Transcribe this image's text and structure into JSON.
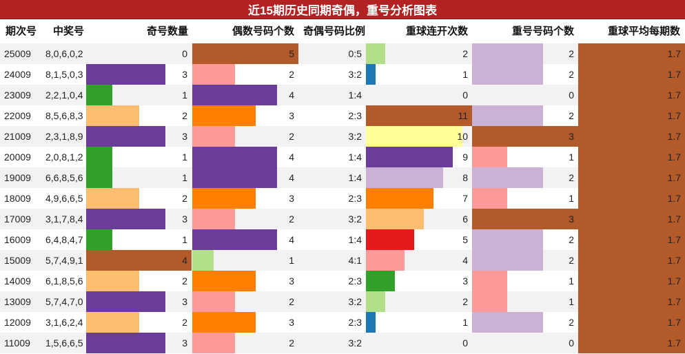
{
  "title": "近15期历史同期奇偶，重号分析图表",
  "chart_data": {
    "type": "table",
    "title": "近15期历史同期奇偶，重号分析图表",
    "columns": [
      "期次号",
      "中奖号",
      "奇号数量",
      "偶数号码个数",
      "奇偶号码比例",
      "重球连开次数",
      "重号号码个数",
      "重球平均每期数"
    ],
    "rows": [
      {
        "period": "25009",
        "numbers": "8,0,6,0,2",
        "odd": 0,
        "even": 5,
        "ratio": "0:5",
        "streak": 2,
        "repeat": 2,
        "avg": 1.7
      },
      {
        "period": "24009",
        "numbers": "8,1,5,0,3",
        "odd": 3,
        "even": 2,
        "ratio": "3:2",
        "streak": 1,
        "repeat": 2,
        "avg": 1.7
      },
      {
        "period": "23009",
        "numbers": "2,2,1,0,4",
        "odd": 1,
        "even": 4,
        "ratio": "1:4",
        "streak": 0,
        "repeat": 0,
        "avg": 1.7
      },
      {
        "period": "22009",
        "numbers": "8,5,6,8,3",
        "odd": 2,
        "even": 3,
        "ratio": "2:3",
        "streak": 11,
        "repeat": 2,
        "avg": 1.7
      },
      {
        "period": "21009",
        "numbers": "2,3,1,8,9",
        "odd": 3,
        "even": 2,
        "ratio": "3:2",
        "streak": 10,
        "repeat": 3,
        "avg": 1.7
      },
      {
        "period": "20009",
        "numbers": "2,0,8,1,2",
        "odd": 1,
        "even": 4,
        "ratio": "1:4",
        "streak": 9,
        "repeat": 1,
        "avg": 1.7
      },
      {
        "period": "19009",
        "numbers": "6,6,8,5,6",
        "odd": 1,
        "even": 4,
        "ratio": "1:4",
        "streak": 8,
        "repeat": 2,
        "avg": 1.7
      },
      {
        "period": "18009",
        "numbers": "4,9,6,6,5",
        "odd": 2,
        "even": 3,
        "ratio": "2:3",
        "streak": 7,
        "repeat": 1,
        "avg": 1.7
      },
      {
        "period": "17009",
        "numbers": "3,1,7,8,4",
        "odd": 3,
        "even": 2,
        "ratio": "3:2",
        "streak": 6,
        "repeat": 3,
        "avg": 1.7
      },
      {
        "period": "16009",
        "numbers": "6,4,8,4,7",
        "odd": 1,
        "even": 4,
        "ratio": "1:4",
        "streak": 5,
        "repeat": 2,
        "avg": 1.7
      },
      {
        "period": "15009",
        "numbers": "5,7,4,9,1",
        "odd": 4,
        "even": 1,
        "ratio": "4:1",
        "streak": 4,
        "repeat": 2,
        "avg": 1.7
      },
      {
        "period": "14009",
        "numbers": "6,1,8,5,6",
        "odd": 2,
        "even": 3,
        "ratio": "2:3",
        "streak": 3,
        "repeat": 1,
        "avg": 1.7
      },
      {
        "period": "13009",
        "numbers": "5,7,4,7,0",
        "odd": 3,
        "even": 2,
        "ratio": "3:2",
        "streak": 2,
        "repeat": 1,
        "avg": 1.7
      },
      {
        "period": "12009",
        "numbers": "3,1,6,2,4",
        "odd": 2,
        "even": 3,
        "ratio": "2:3",
        "streak": 1,
        "repeat": 2,
        "avg": 1.7
      },
      {
        "period": "11009",
        "numbers": "1,5,6,6,5",
        "odd": 3,
        "even": 2,
        "ratio": "3:2",
        "streak": 0,
        "repeat": 0,
        "avg": 1.7
      }
    ],
    "scale": {
      "odd_max": 4,
      "even_max": 5,
      "streak_max": 11,
      "repeat_max": 3,
      "avg_max": 1.7
    },
    "colors": {
      "count_5": "#b35a2a",
      "count_4": "#6b3d9a",
      "count_3": "#ff7f00",
      "count_2": "#fb9a99",
      "count_1": "#33a02c",
      "count_odd_2": "#fdbf6f",
      "count_odd_3": "#6b3d9a",
      "count_odd_4": "#b35a2a",
      "count_even_1": "#b2df8a",
      "count_even_2": "#fb9a99",
      "count_even_3": "#ff7f00",
      "count_even_4": "#6b3d9a",
      "count_even_5": "#b35a2a",
      "streak_1": "#1f78b4",
      "streak_2": "#b2df8a",
      "streak_3": "#33a02c",
      "streak_4": "#fb9a99",
      "streak_5": "#e31a1c",
      "streak_6": "#fdbf6f",
      "streak_7": "#ff7f00",
      "streak_8": "#cab2d6",
      "streak_9": "#6b3d9a",
      "streak_10": "#ffff99",
      "streak_11": "#b35a2a",
      "repeat_1": "#fb9a99",
      "repeat_2": "#cab2d6",
      "repeat_3": "#b35a2a",
      "avg": "#b35a2a",
      "title_bg": "#b22222",
      "row_alt": "#f2f2f2"
    }
  }
}
